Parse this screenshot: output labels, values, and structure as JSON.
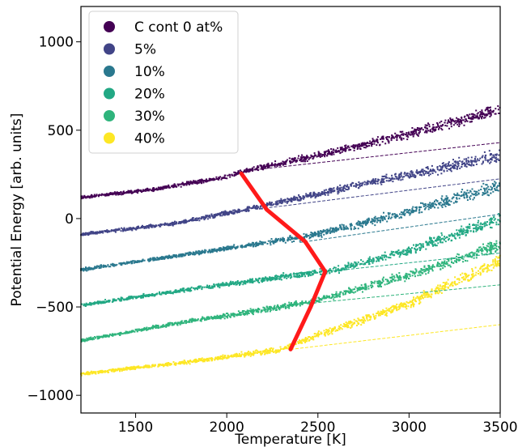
{
  "chart_data": {
    "type": "scatter",
    "xlabel": "Temperature [K]",
    "ylabel": "Potential Energy [arb. units]",
    "xlim": [
      1200,
      3500
    ],
    "ylim": [
      -1100,
      1200
    ],
    "xticks": [
      1500,
      2000,
      2500,
      3000,
      3500
    ],
    "yticks": [
      -1000,
      -500,
      0,
      500,
      1000
    ],
    "ytick_labels": [
      "−1000",
      "−500",
      "0",
      "500",
      "1000"
    ],
    "grid": false,
    "legend_position": "top-left",
    "series": [
      {
        "name": "C cont 0 at%",
        "color": "#440154",
        "knots": [
          [
            1200,
            120
          ],
          [
            1600,
            165
          ],
          [
            2000,
            235
          ],
          [
            2100,
            270
          ],
          [
            2600,
            380
          ],
          [
            3000,
            480
          ],
          [
            3500,
            615
          ]
        ],
        "glass": [
          [
            2100,
            270
          ],
          [
            3500,
            430
          ]
        ]
      },
      {
        "name": "5%",
        "color": "#414487",
        "knots": [
          [
            1200,
            -90
          ],
          [
            1700,
            -30
          ],
          [
            2150,
            60
          ],
          [
            2500,
            140
          ],
          [
            3000,
            250
          ],
          [
            3500,
            355
          ]
        ],
        "glass": [
          [
            2180,
            55
          ],
          [
            3500,
            225
          ]
        ]
      },
      {
        "name": "10%",
        "color": "#2a788e",
        "knots": [
          [
            1200,
            -290
          ],
          [
            1800,
            -200
          ],
          [
            2250,
            -130
          ],
          [
            2450,
            -100
          ],
          [
            3000,
            40
          ],
          [
            3500,
            185
          ]
        ],
        "glass": [
          [
            2400,
            -135
          ],
          [
            3500,
            25
          ]
        ]
      },
      {
        "name": "20%",
        "color": "#22a884",
        "knots": [
          [
            1200,
            -490
          ],
          [
            1800,
            -400
          ],
          [
            2300,
            -330
          ],
          [
            2600,
            -290
          ],
          [
            3000,
            -180
          ],
          [
            3500,
            0
          ]
        ],
        "glass": [
          [
            2550,
            -300
          ],
          [
            3500,
            -195
          ]
        ]
      },
      {
        "name": "30%",
        "color": "#2fb47c",
        "knots": [
          [
            1200,
            -690
          ],
          [
            1800,
            -580
          ],
          [
            2300,
            -500
          ],
          [
            2500,
            -460
          ],
          [
            3000,
            -320
          ],
          [
            3500,
            -150
          ]
        ],
        "glass": [
          [
            2450,
            -480
          ],
          [
            3500,
            -375
          ]
        ]
      },
      {
        "name": "40%",
        "color": "#fde725",
        "knots": [
          [
            1200,
            -880
          ],
          [
            1800,
            -810
          ],
          [
            2300,
            -740
          ],
          [
            2500,
            -660
          ],
          [
            3000,
            -480
          ],
          [
            3500,
            -240
          ]
        ],
        "glass": [
          [
            2350,
            -740
          ],
          [
            3500,
            -600
          ]
        ]
      }
    ],
    "transition_line": {
      "color": "#ff1a1a",
      "points": [
        [
          2080,
          255
        ],
        [
          2220,
          50
        ],
        [
          2430,
          -130
        ],
        [
          2540,
          -300
        ],
        [
          2460,
          -500
        ],
        [
          2350,
          -740
        ]
      ]
    }
  }
}
